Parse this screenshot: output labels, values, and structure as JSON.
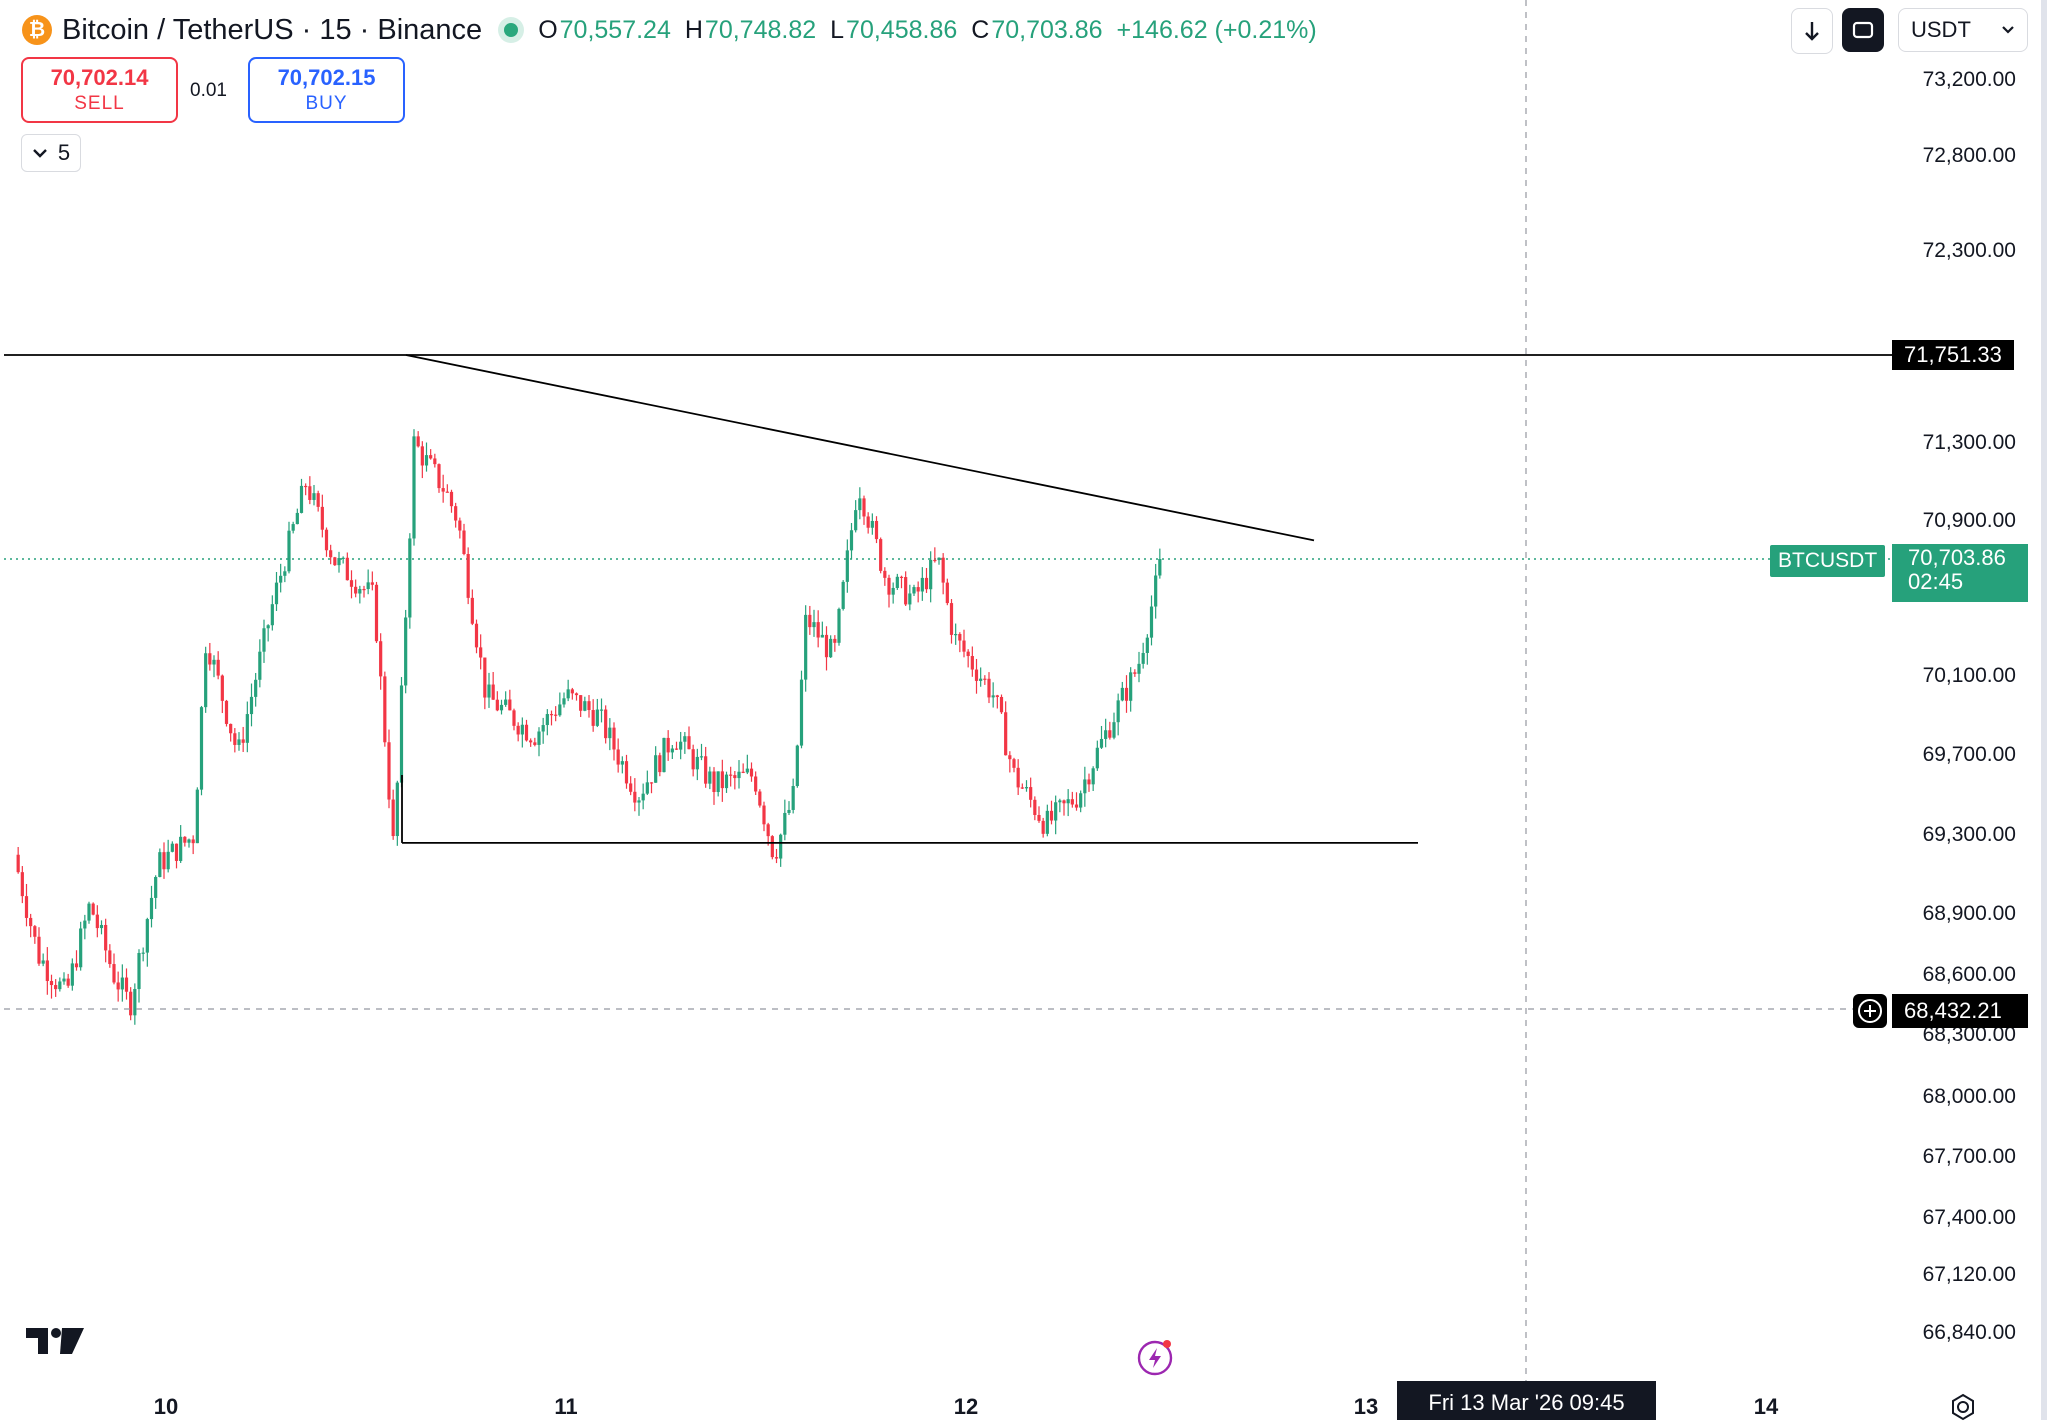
{
  "header": {
    "coin_glyph": "₿",
    "title": "Bitcoin / TetherUS · 15 · Binance",
    "ohlc": {
      "o_key": "O",
      "o_val": "70,557.24",
      "h_key": "H",
      "h_val": "70,748.82",
      "l_key": "L",
      "l_val": "70,458.86",
      "c_key": "C",
      "c_val": "70,703.86",
      "change": "+146.62 (+0.21%)"
    }
  },
  "trade": {
    "sell_price": "70,702.14",
    "sell_label": "SELL",
    "quantity": "0.01",
    "buy_price": "70,702.15",
    "buy_label": "BUY",
    "collapse_count": "5"
  },
  "toolbar": {
    "currency": "USDT",
    "icons": [
      "arrow-down-icon",
      "sync-icon",
      "chevron-down-icon"
    ]
  },
  "labels": {
    "resistance": "71,751.33",
    "live_symbol": "BTCUSDT",
    "live_price": "70,703.86",
    "countdown": "02:45",
    "crosshair_price": "68,432.21",
    "crosshair_date": "Fri 13 Mar '26   09:45"
  },
  "colors": {
    "up": "#26a17b",
    "down": "#f23645",
    "accent": "#2962ff",
    "line": "#000000"
  },
  "chart_data": {
    "type": "candlestick",
    "symbol": "BTCUSDT",
    "exchange": "Binance",
    "interval": "15",
    "x_labels": [
      "10",
      "11",
      "12",
      "13",
      "14"
    ],
    "y_ticks": [
      "73,200.00",
      "72,800.00",
      "72,300.00",
      "71,300.00",
      "70,900.00",
      "70,100.00",
      "69,700.00",
      "69,300.00",
      "68,900.00",
      "68,600.00",
      "68,300.00",
      "68,000.00",
      "67,700.00",
      "67,400.00",
      "67,120.00",
      "66,840.00"
    ],
    "y_tick_values": [
      73200,
      72800,
      72300,
      71300,
      70900,
      70100,
      69700,
      69300,
      68900,
      68600,
      68300,
      68000,
      67700,
      67400,
      67120,
      66840
    ],
    "ylim": [
      66600,
      73500
    ],
    "last_price": 70703.86,
    "crosshair_price": 68432.21,
    "close_path": [
      [
        9.62,
        69200
      ],
      [
        9.68,
        68700
      ],
      [
        9.75,
        68500
      ],
      [
        9.81,
        68950
      ],
      [
        9.87,
        68600
      ],
      [
        9.91,
        68450
      ],
      [
        9.98,
        69150
      ],
      [
        10.07,
        69300
      ],
      [
        10.1,
        70300
      ],
      [
        10.18,
        69700
      ],
      [
        10.27,
        70500
      ],
      [
        10.35,
        71100
      ],
      [
        10.42,
        70700
      ],
      [
        10.52,
        70500
      ],
      [
        10.57,
        69200
      ],
      [
        10.62,
        71300
      ],
      [
        10.7,
        71050
      ],
      [
        10.73,
        70900
      ],
      [
        10.8,
        70000
      ],
      [
        10.92,
        69800
      ],
      [
        11.0,
        70000
      ],
      [
        11.08,
        69900
      ],
      [
        11.18,
        69500
      ],
      [
        11.27,
        69800
      ],
      [
        11.37,
        69550
      ],
      [
        11.47,
        69600
      ],
      [
        11.52,
        69200
      ],
      [
        11.57,
        69500
      ],
      [
        11.6,
        70400
      ],
      [
        11.67,
        70200
      ],
      [
        11.73,
        71100
      ],
      [
        11.8,
        70600
      ],
      [
        11.87,
        70500
      ],
      [
        11.93,
        70700
      ],
      [
        11.97,
        70300
      ],
      [
        12.07,
        70000
      ],
      [
        12.12,
        69600
      ],
      [
        12.2,
        69350
      ],
      [
        12.28,
        69500
      ],
      [
        12.37,
        69900
      ],
      [
        12.43,
        70150
      ],
      [
        12.49,
        70704
      ]
    ],
    "drawings": [
      {
        "type": "horizontal-line",
        "price": 71751.33
      },
      {
        "type": "trend-line",
        "from": [
          10.6,
          71751.33
        ],
        "to": [
          12.87,
          70800
        ]
      },
      {
        "type": "trend-line",
        "from": [
          10.59,
          69260
        ],
        "to": [
          13.13,
          69260
        ]
      },
      {
        "type": "trend-line",
        "from": [
          10.59,
          69260
        ],
        "to": [
          10.59,
          69600
        ]
      }
    ]
  }
}
